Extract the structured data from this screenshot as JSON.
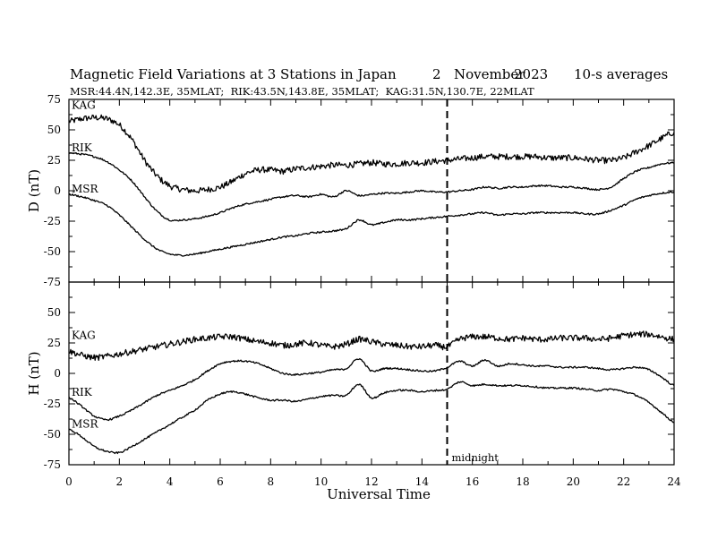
{
  "header": {
    "title": "Magnetic Field Variations at 3 Stations in Japan",
    "date_day": "2",
    "date_month": "November",
    "date_year": "2023",
    "averaging": "10-s averages",
    "stations_line": "MSR:44.4N,142.3E, 35MLAT;  RIK:43.5N,143.8E, 35MLAT;  KAG:31.5N,130.7E, 22MLAT"
  },
  "annotations": {
    "midnight_label": "midnight",
    "midnight_x": 15
  },
  "chart_data": {
    "type": "line",
    "xlabel": "Universal Time",
    "xlim": [
      0,
      24
    ],
    "x_ticks": [
      0,
      2,
      4,
      6,
      8,
      10,
      12,
      14,
      16,
      18,
      20,
      22,
      24
    ],
    "panels": [
      {
        "id": "D",
        "ylabel": "D (nT)",
        "ylim": [
          -75,
          75
        ],
        "y_ticks": [
          75,
          50,
          25,
          0,
          -25,
          -50,
          -75
        ],
        "series": [
          {
            "name": "KAG",
            "noise": 2.5,
            "x": [
              0,
              0.5,
              1,
              1.5,
              2,
              2.5,
              3,
              3.5,
              4,
              4.5,
              5,
              5.5,
              6,
              6.5,
              7,
              7.5,
              8,
              8.5,
              9,
              9.5,
              10,
              10.5,
              11,
              11.5,
              12,
              12.5,
              13,
              13.5,
              14,
              14.5,
              15,
              15.5,
              16,
              16.5,
              17,
              17.5,
              18,
              18.5,
              19,
              19.5,
              20,
              20.5,
              21,
              21.5,
              22,
              22.5,
              23,
              23.5,
              24
            ],
            "y": [
              57,
              59,
              60,
              59,
              54,
              42,
              25,
              12,
              4,
              1,
              0,
              1,
              3,
              8,
              14,
              17,
              17,
              16,
              18,
              19,
              20,
              21,
              21,
              22,
              23,
              22,
              22,
              23,
              23,
              24,
              25,
              26,
              27,
              28,
              28,
              28,
              28,
              28,
              27,
              27,
              27,
              26,
              25,
              25,
              27,
              32,
              37,
              43,
              48
            ]
          },
          {
            "name": "RIK",
            "noise": 0.7,
            "x": [
              0,
              0.5,
              1,
              1.5,
              2,
              2.5,
              3,
              3.5,
              4,
              4.5,
              5,
              5.5,
              6,
              6.5,
              7,
              7.5,
              8,
              8.5,
              9,
              9.5,
              10,
              10.5,
              11,
              11.5,
              12,
              12.5,
              13,
              13.5,
              14,
              14.5,
              15,
              15.5,
              16,
              16.5,
              17,
              17.5,
              18,
              18.5,
              19,
              19.5,
              20,
              20.5,
              21,
              21.5,
              22,
              22.5,
              23,
              23.5,
              24
            ],
            "y": [
              31,
              30,
              28,
              24,
              17,
              8,
              -5,
              -17,
              -24,
              -24,
              -23,
              -21,
              -18,
              -14,
              -11,
              -9,
              -7,
              -5,
              -4,
              -5,
              -3,
              -5,
              0,
              -4,
              -3,
              -2,
              -2,
              -1,
              0,
              -1,
              -1,
              0,
              1,
              3,
              2,
              3,
              3,
              4,
              4,
              3,
              3,
              2,
              1,
              3,
              10,
              16,
              19,
              22,
              23
            ]
          },
          {
            "name": "MSR",
            "noise": 0.7,
            "x": [
              0,
              0.5,
              1,
              1.5,
              2,
              2.5,
              3,
              3.5,
              4,
              4.5,
              5,
              5.5,
              6,
              6.5,
              7,
              7.5,
              8,
              8.5,
              9,
              9.5,
              10,
              10.5,
              11,
              11.5,
              12,
              12.5,
              13,
              13.5,
              14,
              14.5,
              15,
              15.5,
              16,
              16.5,
              17,
              17.5,
              18,
              18.5,
              19,
              19.5,
              20,
              20.5,
              21,
              21.5,
              22,
              22.5,
              23,
              23.5,
              24
            ],
            "y": [
              -3,
              -5,
              -8,
              -12,
              -20,
              -30,
              -40,
              -48,
              -52,
              -53,
              -52,
              -50,
              -48,
              -46,
              -44,
              -42,
              -40,
              -38,
              -37,
              -35,
              -34,
              -33,
              -31,
              -24,
              -28,
              -26,
              -24,
              -24,
              -23,
              -22,
              -21,
              -20,
              -19,
              -18,
              -20,
              -19,
              -19,
              -18,
              -18,
              -18,
              -18,
              -19,
              -19,
              -16,
              -12,
              -7,
              -4,
              -2,
              -1
            ]
          }
        ]
      },
      {
        "id": "H",
        "ylabel": "H (nT)",
        "ylim": [
          -75,
          75
        ],
        "y_ticks": [
          75,
          50,
          25,
          0,
          -25,
          -50,
          -75
        ],
        "series": [
          {
            "name": "KAG",
            "noise": 2.5,
            "x": [
              0,
              0.5,
              1,
              1.5,
              2,
              2.5,
              3,
              3.5,
              4,
              4.5,
              5,
              5.5,
              6,
              6.5,
              7,
              7.5,
              8,
              8.5,
              9,
              9.5,
              10,
              10.5,
              11,
              11.5,
              12,
              12.5,
              13,
              13.5,
              14,
              14.5,
              15,
              15.5,
              16,
              16.5,
              17,
              17.5,
              18,
              18.5,
              19,
              19.5,
              20,
              20.5,
              21,
              21.5,
              22,
              22.5,
              23,
              23.5,
              24
            ],
            "y": [
              18,
              15,
              13,
              14,
              16,
              18,
              20,
              22,
              24,
              26,
              28,
              29,
              30,
              30,
              28,
              26,
              25,
              23,
              24,
              25,
              23,
              22,
              24,
              28,
              26,
              24,
              23,
              22,
              22,
              23,
              22,
              28,
              30,
              30,
              29,
              28,
              29,
              28,
              28,
              29,
              29,
              29,
              28,
              29,
              31,
              32,
              32,
              30,
              28
            ]
          },
          {
            "name": "RIK",
            "noise": 0.7,
            "x": [
              0,
              0.5,
              1,
              1.5,
              2,
              2.5,
              3,
              3.5,
              4,
              4.5,
              5,
              5.5,
              6,
              6.5,
              7,
              7.5,
              8,
              8.5,
              9,
              9.5,
              10,
              10.5,
              11,
              11.5,
              12,
              12.5,
              13,
              13.5,
              14,
              14.5,
              15,
              15.5,
              16,
              16.5,
              17,
              17.5,
              18,
              18.5,
              19,
              19.5,
              20,
              20.5,
              21,
              21.5,
              22,
              22.5,
              23,
              23.5,
              24
            ],
            "y": [
              -20,
              -27,
              -35,
              -38,
              -35,
              -30,
              -24,
              -18,
              -14,
              -10,
              -5,
              2,
              8,
              10,
              10,
              8,
              4,
              0,
              -1,
              0,
              1,
              3,
              4,
              12,
              2,
              4,
              4,
              3,
              2,
              2,
              5,
              10,
              6,
              11,
              6,
              8,
              7,
              6,
              6,
              5,
              5,
              5,
              4,
              3,
              4,
              5,
              3,
              -3,
              -10
            ]
          },
          {
            "name": "MSR",
            "noise": 0.7,
            "x": [
              0,
              0.5,
              1,
              1.5,
              2,
              2.5,
              3,
              3.5,
              4,
              4.5,
              5,
              5.5,
              6,
              6.5,
              7,
              7.5,
              8,
              8.5,
              9,
              9.5,
              10,
              10.5,
              11,
              11.5,
              12,
              12.5,
              13,
              13.5,
              14,
              14.5,
              15,
              15.5,
              16,
              16.5,
              17,
              17.5,
              18,
              18.5,
              19,
              19.5,
              20,
              20.5,
              21,
              21.5,
              22,
              22.5,
              23,
              23.5,
              24
            ],
            "y": [
              -46,
              -52,
              -60,
              -64,
              -65,
              -60,
              -54,
              -48,
              -42,
              -36,
              -30,
              -22,
              -17,
              -15,
              -17,
              -20,
              -22,
              -22,
              -23,
              -21,
              -19,
              -18,
              -18,
              -9,
              -20,
              -16,
              -14,
              -14,
              -15,
              -14,
              -13,
              -7,
              -10,
              -9,
              -10,
              -10,
              -10,
              -11,
              -12,
              -12,
              -12,
              -13,
              -14,
              -13,
              -15,
              -18,
              -24,
              -32,
              -40
            ]
          }
        ]
      }
    ]
  }
}
